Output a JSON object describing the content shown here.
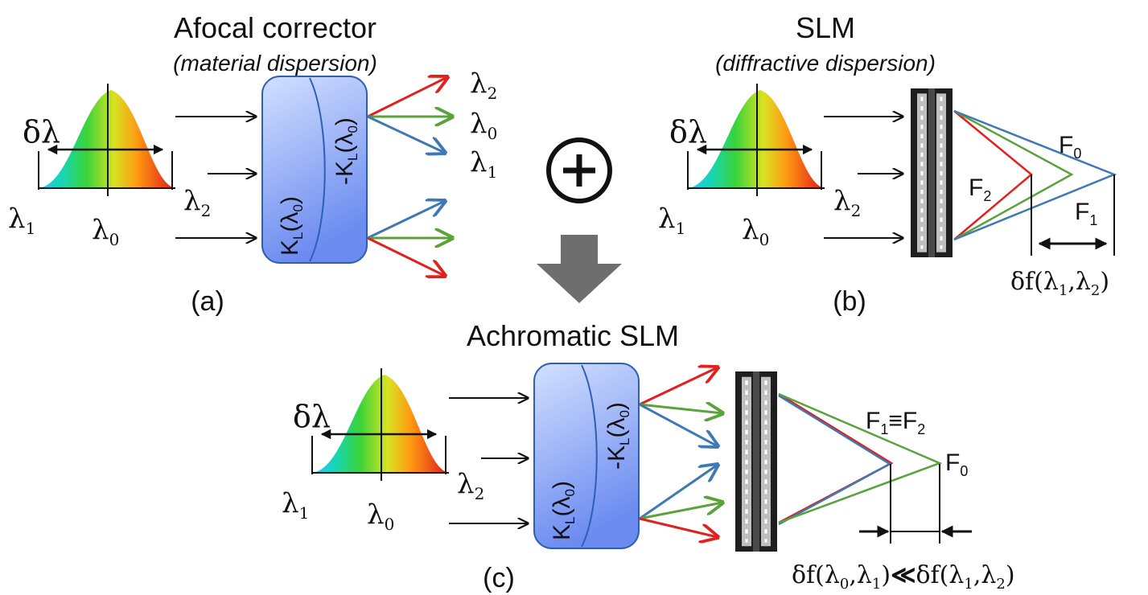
{
  "panel_a": {
    "title": "Afocal corrector",
    "subtitle": "(material dispersion)",
    "label": "(a)",
    "lens_left": "K",
    "lens_left_sub": "L",
    "lens_left_arg": "(λ",
    "lens_left_arg_sub": "0",
    "lens_right": "-K",
    "lens_right_sub": "L",
    "lens_right_arg": "(λ",
    "lens_right_arg_sub": "0",
    "out_labels": [
      {
        "base": "λ",
        "sub": "2"
      },
      {
        "base": "λ",
        "sub": "0"
      },
      {
        "base": "λ",
        "sub": "1"
      }
    ]
  },
  "panel_b": {
    "title": "SLM",
    "subtitle": "(diffractive dispersion)",
    "label": "(b)",
    "focus_labels": [
      {
        "base": "F",
        "sub": "0"
      },
      {
        "base": "F",
        "sub": "2"
      },
      {
        "base": "F",
        "sub": "1"
      }
    ],
    "delta_f": {
      "prefix": "δf(λ",
      "s1": "1",
      "mid": ",λ",
      "s2": "2",
      "suffix": ")"
    }
  },
  "panel_c": {
    "title": "Achromatic SLM",
    "label": "(c)",
    "focus_combined": {
      "a": "F",
      "a_sub": "1",
      "eq": "≡",
      "b": "F",
      "b_sub": "2"
    },
    "focus_f0": {
      "base": "F",
      "sub": "0"
    },
    "comparison": {
      "left_prefix": "δf(λ",
      "left_s1": "0",
      "left_mid": ",λ",
      "left_s2": "1",
      "left_suffix": ")",
      "op": "≪",
      "right_prefix": "δf(λ",
      "right_s1": "1",
      "right_mid": ",λ",
      "right_s2": "2",
      "right_suffix": ")"
    }
  },
  "spectrum": {
    "delta_label": "δλ",
    "lambda_left": {
      "base": "λ",
      "sub": "1"
    },
    "lambda_center": {
      "base": "λ",
      "sub": "0"
    },
    "lambda_right": {
      "base": "λ",
      "sub": "2"
    }
  },
  "plus_symbol": "+",
  "colors": {
    "red": "#e0211d",
    "green": "#5aa33a",
    "blue": "#3f79b5",
    "lens_fill_top": "#c9d7ff",
    "lens_fill_bottom": "#6f8ff0",
    "slm_dark": "#2a2a2a",
    "arrow_gray": "#6e6e6e"
  }
}
